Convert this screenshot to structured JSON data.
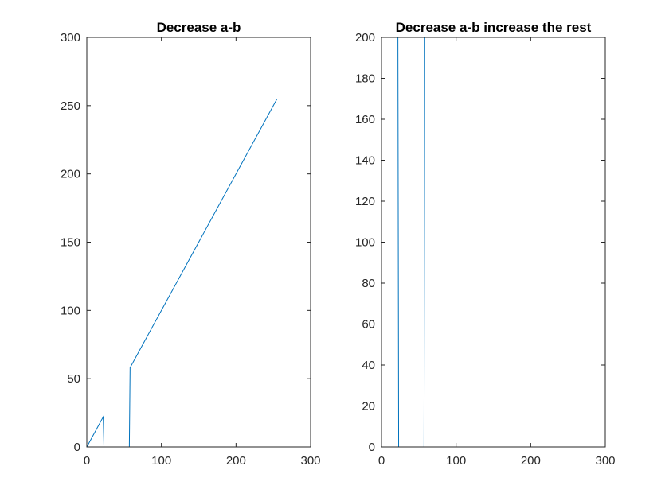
{
  "figure": {
    "background": "#ffffff",
    "axis_color": "#262626",
    "line_color": "#0072bd"
  },
  "chart_data": [
    {
      "type": "line",
      "title": "Decrease a-b",
      "xlabel": "",
      "ylabel": "",
      "xlim": [
        0,
        300
      ],
      "ylim": [
        0,
        300
      ],
      "xticks": [
        0,
        100,
        200,
        300
      ],
      "yticks": [
        0,
        50,
        100,
        150,
        200,
        250,
        300
      ],
      "grid": false,
      "series": [
        {
          "x": [
            0,
            22,
            23,
            57,
            58,
            255
          ],
          "y": [
            0,
            22,
            0,
            0,
            58,
            255
          ]
        }
      ]
    },
    {
      "type": "line",
      "title": "Decrease a-b increase the rest",
      "xlabel": "",
      "ylabel": "",
      "xlim": [
        0,
        300
      ],
      "ylim": [
        0,
        200
      ],
      "xticks": [
        0,
        100,
        200,
        300
      ],
      "yticks": [
        0,
        20,
        40,
        60,
        80,
        100,
        120,
        140,
        160,
        180,
        200
      ],
      "grid": false,
      "series": [
        {
          "x": [
            22,
            23,
            57,
            58,
            255
          ],
          "y": [
            200,
            0,
            0,
            200,
            200
          ]
        }
      ]
    }
  ]
}
